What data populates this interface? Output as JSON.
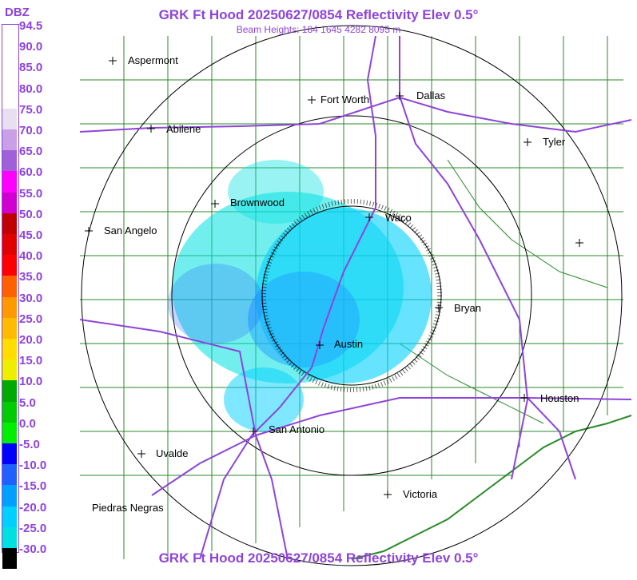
{
  "header": {
    "title": "GRK Ft Hood 20250627/0854 Reflectivity Elev 0.5°",
    "subtitle": "Beam Heights: 184 1645 4282 8095 m",
    "footer": "GRK Ft Hood 20250627/0854 Reflectivity Elev 0.5°"
  },
  "legend": {
    "title": "DBZ",
    "labels": [
      "94.5",
      "90.0",
      "85.0",
      "80.0",
      "75.0",
      "70.0",
      "65.0",
      "60.0",
      "55.0",
      "50.0",
      "45.0",
      "40.0",
      "35.0",
      "30.0",
      "25.0",
      "20.0",
      "15.0",
      "10.0",
      "5.0",
      "0.0",
      "-5.0",
      "-10.0",
      "-15.0",
      "-20.0",
      "-25.0",
      "-30.0"
    ],
    "colors": [
      "#ffffff",
      "#ffffff",
      "#ffffff",
      "#ffffff",
      "#e8e0f0",
      "#c9a0e8",
      "#a060d8",
      "#ff00ff",
      "#d000d0",
      "#c00000",
      "#e00000",
      "#ff0000",
      "#ff6000",
      "#ff9900",
      "#ffbb00",
      "#ffdd00",
      "#eeee00",
      "#00aa00",
      "#00cc00",
      "#00ee00",
      "#0000ff",
      "#2060ff",
      "#00a0ff",
      "#00d0ff",
      "#00e0e0",
      "#000000"
    ]
  },
  "cities": [
    {
      "name": "Aspermont"
    },
    {
      "name": "Fort Worth"
    },
    {
      "name": "Dallas"
    },
    {
      "name": "Abilene"
    },
    {
      "name": "Tyler"
    },
    {
      "name": "Brownwood"
    },
    {
      "name": "Waco"
    },
    {
      "name": "San Angelo"
    },
    {
      "name": "Bryan"
    },
    {
      "name": "Austin"
    },
    {
      "name": "Houston"
    },
    {
      "name": "San Antonio"
    },
    {
      "name": "Uvalde"
    },
    {
      "name": "Victoria"
    },
    {
      "name": "Piedras Negras"
    }
  ],
  "colors": {
    "title": "#8e44d8",
    "roads": "#8e44d8",
    "counties": "#2a8a2a",
    "rings": "#000000",
    "echo_light": "#00e0e0",
    "echo_med": "#20a0ff",
    "echo_dark": "#000000"
  }
}
